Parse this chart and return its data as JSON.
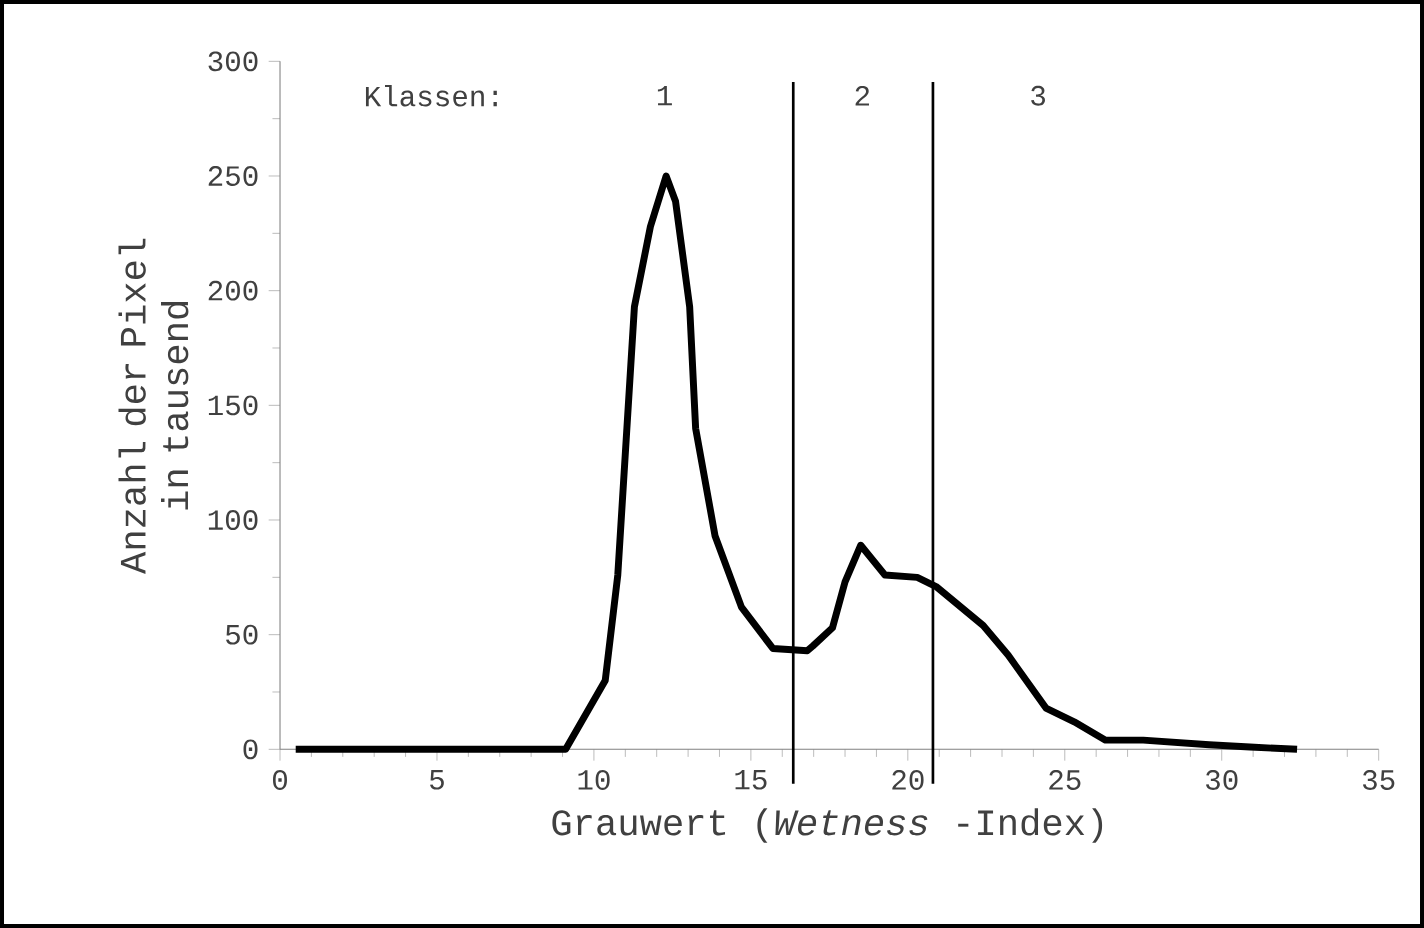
{
  "chart_data": {
    "type": "line",
    "xlabel": "Grauwert (*Wetness* -Index)",
    "ylabel": "Anzahl der Pixel in tausend",
    "series": [
      {
        "color": "#000000",
        "x": [
          0.5,
          9.1,
          10.36,
          10.76,
          11.29,
          11.8,
          12.3,
          12.6,
          13.05,
          13.24,
          13.86,
          14.7,
          15.7,
          16.8,
          16.97,
          17.6,
          18.0,
          18.5,
          19.27,
          20.3,
          20.9,
          22.4,
          23.2,
          24.4,
          25.3,
          26.3,
          27.5,
          29.6,
          30.9,
          32.4
        ],
        "values": [
          0,
          0,
          30,
          76,
          193,
          228,
          250,
          239,
          193,
          140,
          93,
          62,
          44,
          43,
          45,
          53,
          73,
          89,
          76,
          75,
          71,
          54,
          41,
          18,
          12,
          4,
          4,
          2,
          1,
          0
        ]
      }
    ],
    "xlim": [
      0,
      35
    ],
    "xticks": [
      0,
      5,
      10,
      15,
      20,
      25,
      30,
      35
    ],
    "ylim": [
      0,
      300
    ],
    "yticks": [
      0,
      50,
      100,
      150,
      200,
      250,
      300
    ],
    "ref_lines": [
      {
        "axis": "x",
        "value": 16.35,
        "color": "#000000"
      },
      {
        "axis": "x",
        "value": 20.8,
        "color": "#000000"
      }
    ],
    "annotations": [
      "Klassen:",
      "1",
      "2",
      "3"
    ],
    "grid": false,
    "marker": "none",
    "line_style": "solid"
  }
}
